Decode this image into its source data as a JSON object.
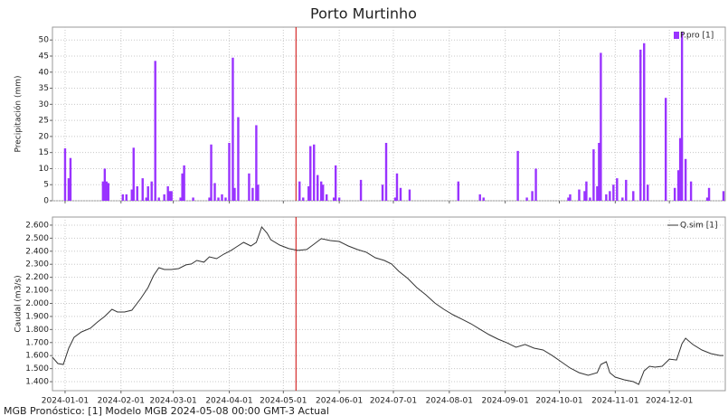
{
  "title": "Porto Murtinho",
  "footer": "MGB Pronóstico: [1] Modelo MGB 2024-05-08 00:00 GMT-3 Actual",
  "current_date": "2024-05-08",
  "current_color": "#cc0000",
  "chart_data": [
    {
      "type": "bar",
      "y_label": "Precipitación (mm)",
      "legend": "upper right",
      "grid": true,
      "xlim": [
        "2023-12-25",
        "2025-01-01"
      ],
      "xticks": [
        "2024-01-01",
        "2024-02-01",
        "2024-03-01",
        "2024-04-01",
        "2024-05-01",
        "2024-06-01",
        "2024-07-01",
        "2024-08-01",
        "2024-09-01",
        "2024-10-01",
        "2024-11-01",
        "2024-12-01"
      ],
      "ylim": [
        0,
        54
      ],
      "yticks": [
        0,
        5,
        10,
        15,
        20,
        25,
        30,
        35,
        40,
        45,
        50
      ],
      "x": [
        "2024-01-01",
        "2024-01-03",
        "2024-01-04",
        "2024-01-22",
        "2024-01-23",
        "2024-01-24",
        "2024-01-25",
        "2024-02-02",
        "2024-02-04",
        "2024-02-07",
        "2024-02-08",
        "2024-02-10",
        "2024-02-13",
        "2024-02-15",
        "2024-02-16",
        "2024-02-18",
        "2024-02-20",
        "2024-02-22",
        "2024-02-25",
        "2024-02-27",
        "2024-02-28",
        "2024-02-29",
        "2024-03-05",
        "2024-03-06",
        "2024-03-07",
        "2024-03-12",
        "2024-03-21",
        "2024-03-22",
        "2024-03-24",
        "2024-03-26",
        "2024-03-28",
        "2024-03-30",
        "2024-04-01",
        "2024-04-03",
        "2024-04-04",
        "2024-04-06",
        "2024-04-12",
        "2024-04-14",
        "2024-04-16",
        "2024-04-17",
        "2024-05-10",
        "2024-05-12",
        "2024-05-15",
        "2024-05-16",
        "2024-05-18",
        "2024-05-20",
        "2024-05-22",
        "2024-05-23",
        "2024-05-25",
        "2024-05-29",
        "2024-05-30",
        "2024-06-01",
        "2024-06-13",
        "2024-06-25",
        "2024-06-27",
        "2024-07-02",
        "2024-07-03",
        "2024-07-05",
        "2024-07-10",
        "2024-08-06",
        "2024-08-18",
        "2024-08-20",
        "2024-09-08",
        "2024-09-13",
        "2024-09-16",
        "2024-09-18",
        "2024-10-06",
        "2024-10-07",
        "2024-10-12",
        "2024-10-15",
        "2024-10-16",
        "2024-10-18",
        "2024-10-20",
        "2024-10-22",
        "2024-10-23",
        "2024-10-24",
        "2024-10-27",
        "2024-10-29",
        "2024-10-31",
        "2024-11-02",
        "2024-11-05",
        "2024-11-07",
        "2024-11-11",
        "2024-11-15",
        "2024-11-17",
        "2024-11-19",
        "2024-11-29",
        "2024-12-04",
        "2024-12-06",
        "2024-12-07",
        "2024-12-08",
        "2024-12-10",
        "2024-12-13",
        "2024-12-22",
        "2024-12-23",
        "2024-12-31"
      ],
      "series": [
        {
          "name": "P.pro [1]",
          "color": "#9933ff",
          "values": [
            16.3,
            7,
            13.3,
            6,
            10,
            6,
            5.5,
            2,
            2,
            3.5,
            16.5,
            4.5,
            7,
            1,
            4.5,
            6,
            43.5,
            1,
            2,
            4.5,
            3,
            3,
            1,
            8.5,
            11,
            1,
            1,
            17.5,
            5.5,
            1,
            2,
            1,
            18,
            44.5,
            4,
            26,
            8.5,
            4,
            23.5,
            5,
            6,
            1,
            4.5,
            17,
            17.5,
            8,
            6,
            5,
            2,
            1,
            11,
            1,
            6.5,
            5,
            18,
            1,
            8.5,
            4,
            3.5,
            6,
            2,
            1,
            15.5,
            1,
            3,
            10,
            1,
            2,
            3.5,
            3,
            6,
            1,
            16,
            4.5,
            18,
            46,
            2,
            3,
            5,
            7,
            1,
            6.5,
            3,
            47,
            49,
            5,
            32,
            4,
            9.5,
            19.5,
            52.5,
            13,
            6,
            1,
            4,
            3
          ]
        }
      ]
    },
    {
      "type": "line",
      "y_label": "Caudal (m3/s)",
      "legend": "upper right",
      "grid": true,
      "xlim": [
        "2023-12-25",
        "2025-01-01"
      ],
      "xticks": [
        "2024-01-01",
        "2024-02-01",
        "2024-03-01",
        "2024-04-01",
        "2024-05-01",
        "2024-06-01",
        "2024-07-01",
        "2024-08-01",
        "2024-09-01",
        "2024-10-01",
        "2024-11-01",
        "2024-12-01"
      ],
      "ylim": [
        1331,
        2662
      ],
      "yticks": [
        {
          "value": 1400,
          "label": "1.400"
        },
        {
          "value": 1500,
          "label": "1.500"
        },
        {
          "value": 1600,
          "label": "1.600"
        },
        {
          "value": 1700,
          "label": "1.700"
        },
        {
          "value": 1800,
          "label": "1.800"
        },
        {
          "value": 1900,
          "label": "1.900"
        },
        {
          "value": 2000,
          "label": "2.000"
        },
        {
          "value": 2100,
          "label": "2.100"
        },
        {
          "value": 2200,
          "label": "2.200"
        },
        {
          "value": 2300,
          "label": "2.300"
        },
        {
          "value": 2400,
          "label": "2.400"
        },
        {
          "value": 2500,
          "label": "2.500"
        },
        {
          "value": 2600,
          "label": "2.600"
        }
      ],
      "x": [
        "2023-12-25",
        "2023-12-28",
        "2023-12-31",
        "2024-01-03",
        "2024-01-06",
        "2024-01-10",
        "2024-01-15",
        "2024-01-19",
        "2024-01-23",
        "2024-01-27",
        "2024-01-30",
        "2024-02-03",
        "2024-02-07",
        "2024-02-12",
        "2024-02-16",
        "2024-02-19",
        "2024-02-22",
        "2024-02-25",
        "2024-02-29",
        "2024-03-04",
        "2024-03-08",
        "2024-03-11",
        "2024-03-14",
        "2024-03-18",
        "2024-03-21",
        "2024-03-25",
        "2024-03-29",
        "2024-04-02",
        "2024-04-05",
        "2024-04-09",
        "2024-04-13",
        "2024-04-16",
        "2024-04-19",
        "2024-04-22",
        "2024-04-24",
        "2024-04-29",
        "2024-05-04",
        "2024-05-09",
        "2024-05-14",
        "2024-05-18",
        "2024-05-22",
        "2024-05-27",
        "2024-06-01",
        "2024-06-06",
        "2024-06-11",
        "2024-06-16",
        "2024-06-21",
        "2024-06-26",
        "2024-06-30",
        "2024-07-04",
        "2024-07-09",
        "2024-07-14",
        "2024-07-19",
        "2024-07-24",
        "2024-07-29",
        "2024-08-03",
        "2024-08-08",
        "2024-08-13",
        "2024-08-18",
        "2024-08-23",
        "2024-08-28",
        "2024-09-02",
        "2024-09-07",
        "2024-09-12",
        "2024-09-17",
        "2024-09-22",
        "2024-09-27",
        "2024-10-02",
        "2024-10-07",
        "2024-10-12",
        "2024-10-17",
        "2024-10-22",
        "2024-10-24",
        "2024-10-27",
        "2024-10-29",
        "2024-11-01",
        "2024-11-06",
        "2024-11-11",
        "2024-11-14",
        "2024-11-17",
        "2024-11-20",
        "2024-11-23",
        "2024-11-27",
        "2024-12-01",
        "2024-12-05",
        "2024-12-08",
        "2024-12-10",
        "2024-12-14",
        "2024-12-19",
        "2024-12-24",
        "2024-12-29",
        "2024-12-31"
      ],
      "series": [
        {
          "name": "Q.sim [1]",
          "color": "#333333",
          "values": [
            1587,
            1539,
            1532,
            1657,
            1740,
            1781,
            1809,
            1858,
            1900,
            1955,
            1934,
            1934,
            1948,
            2038,
            2121,
            2212,
            2274,
            2260,
            2260,
            2267,
            2295,
            2302,
            2329,
            2316,
            2357,
            2343,
            2378,
            2406,
            2433,
            2468,
            2440,
            2468,
            2586,
            2538,
            2489,
            2447,
            2420,
            2406,
            2413,
            2454,
            2496,
            2482,
            2475,
            2440,
            2413,
            2392,
            2350,
            2329,
            2302,
            2246,
            2191,
            2121,
            2066,
            2003,
            1955,
            1913,
            1879,
            1844,
            1802,
            1761,
            1726,
            1698,
            1664,
            1685,
            1657,
            1643,
            1601,
            1553,
            1504,
            1469,
            1449,
            1469,
            1532,
            1553,
            1469,
            1435,
            1414,
            1400,
            1379,
            1483,
            1518,
            1511,
            1518,
            1573,
            1566,
            1691,
            1733,
            1685,
            1643,
            1615,
            1601,
            1601
          ]
        }
      ]
    }
  ]
}
